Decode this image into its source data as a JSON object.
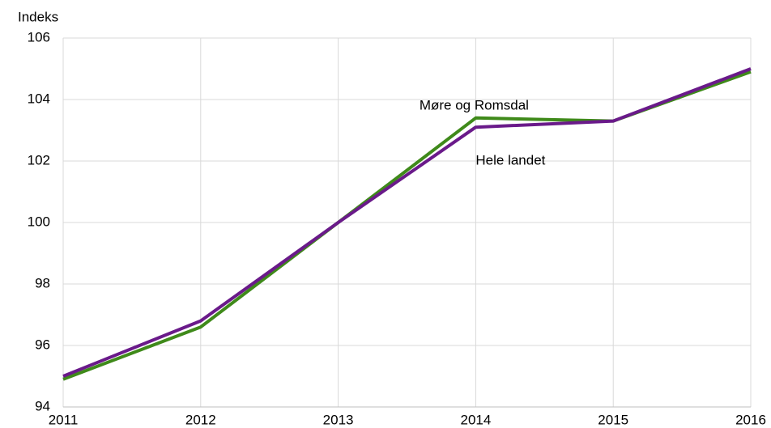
{
  "chart_data": {
    "type": "line",
    "y_label": "Indeks",
    "x": [
      2011,
      2012,
      2013,
      2014,
      2015,
      2016
    ],
    "series": [
      {
        "name": "Møre og Romsdal",
        "color": "#3f8a1a",
        "values": [
          94.9,
          96.6,
          100,
          103.4,
          103.3,
          104.9
        ]
      },
      {
        "name": "Hele landet",
        "color": "#6a1a8a",
        "values": [
          95.0,
          96.8,
          100,
          103.1,
          103.3,
          105.0
        ]
      }
    ],
    "xlim": [
      2011,
      2016
    ],
    "xticks": [
      2011,
      2012,
      2013,
      2014,
      2015,
      2016
    ],
    "ylim": [
      94,
      106
    ],
    "yticks": [
      94,
      96,
      98,
      100,
      102,
      104,
      106
    ],
    "grid": true
  }
}
